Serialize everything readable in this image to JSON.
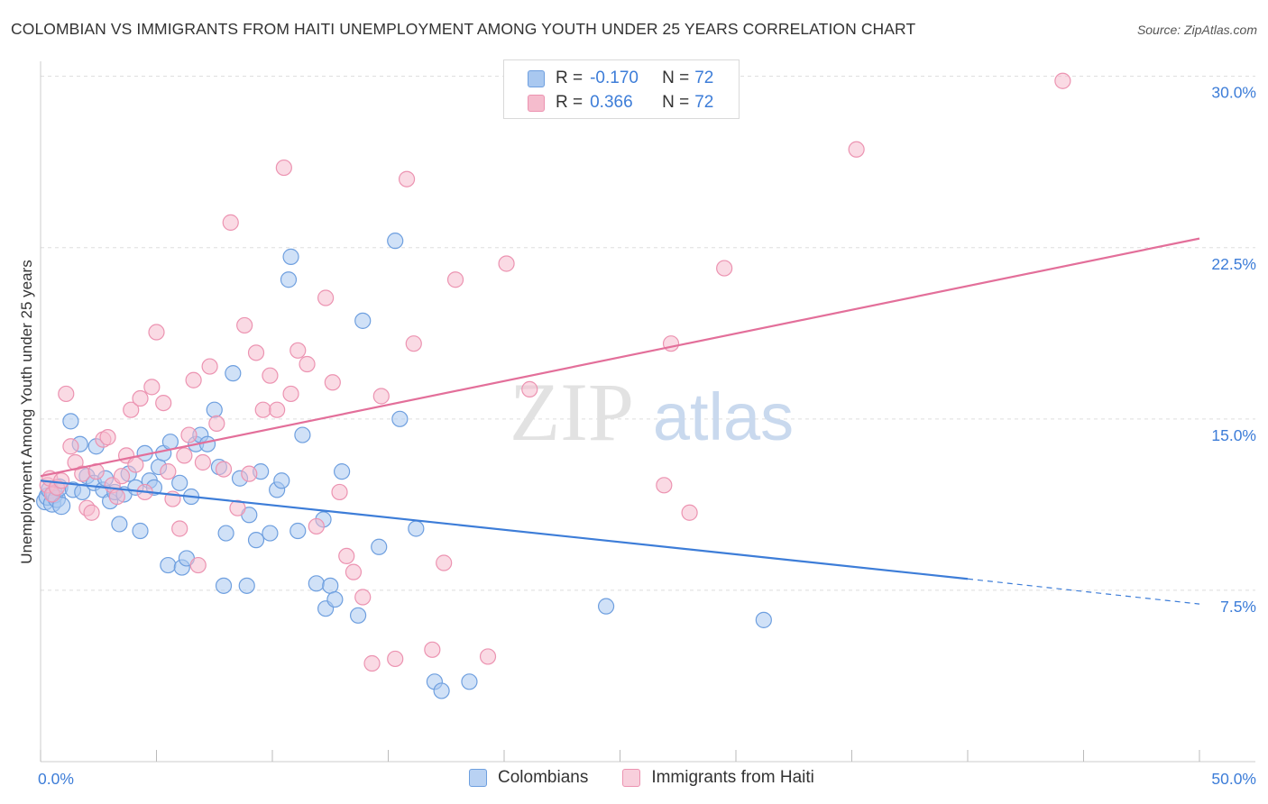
{
  "title": "COLOMBIAN VS IMMIGRANTS FROM HAITI UNEMPLOYMENT AMONG YOUTH UNDER 25 YEARS CORRELATION CHART",
  "source": "Source: ZipAtlas.com",
  "watermark": {
    "part1": "ZIP",
    "part2": "atlas"
  },
  "legend": {
    "row1": {
      "r_label": "R =",
      "r_value": "-0.170",
      "n_label": "N =",
      "n_value": "72"
    },
    "row2": {
      "r_label": "R =",
      "r_value": "0.366",
      "n_label": "N =",
      "n_value": "72"
    }
  },
  "colors": {
    "blue": "#3d7dd8",
    "blue_fill": "#a9c8f0",
    "blue_stroke": "#6e9fdf",
    "pink": "#e36f9a",
    "pink_fill": "#f5bccd",
    "pink_stroke": "#ec93b1",
    "grid": "#dddddd",
    "tick_label": "#3d7dd8"
  },
  "chart_data": {
    "type": "scatter",
    "title": "COLOMBIAN VS IMMIGRANTS FROM HAITI UNEMPLOYMENT AMONG YOUTH UNDER 25 YEARS CORRELATION CHART",
    "xlabel": "",
    "ylabel": "Unemployment Among Youth under 25 years",
    "xlim": [
      0,
      50
    ],
    "ylim": [
      0,
      30.5
    ],
    "x_tick_labels": [
      "0.0%",
      "50.0%"
    ],
    "y_ticks": [
      7.5,
      15,
      22.5,
      30
    ],
    "y_tick_labels": [
      "7.5%",
      "15.0%",
      "22.5%",
      "30.0%"
    ],
    "legend_position": "top-center",
    "series": [
      {
        "name": "Colombians",
        "color": "#3d7dd8",
        "r": -0.17,
        "n": 72,
        "trend": {
          "x0": 0,
          "y0": 12.3,
          "x1": 40,
          "y1": 8.0,
          "dashed_to_x": 50,
          "dashed_to_y": 6.9
        },
        "points": [
          [
            0.2,
            11.4
          ],
          [
            0.3,
            11.6
          ],
          [
            0.4,
            11.9
          ],
          [
            0.5,
            11.3
          ],
          [
            0.6,
            11.7
          ],
          [
            0.7,
            11.5
          ],
          [
            0.8,
            12.0
          ],
          [
            0.9,
            11.2
          ],
          [
            1.3,
            14.9
          ],
          [
            1.4,
            11.9
          ],
          [
            1.7,
            13.9
          ],
          [
            1.8,
            11.8
          ],
          [
            2.0,
            12.5
          ],
          [
            2.3,
            12.2
          ],
          [
            2.4,
            13.8
          ],
          [
            2.7,
            11.9
          ],
          [
            2.8,
            12.4
          ],
          [
            3.0,
            11.4
          ],
          [
            3.2,
            11.8
          ],
          [
            3.4,
            10.4
          ],
          [
            3.6,
            11.7
          ],
          [
            3.8,
            12.6
          ],
          [
            4.1,
            12.0
          ],
          [
            4.3,
            10.1
          ],
          [
            4.5,
            13.5
          ],
          [
            4.7,
            12.3
          ],
          [
            4.9,
            12.0
          ],
          [
            5.1,
            12.9
          ],
          [
            5.3,
            13.5
          ],
          [
            5.5,
            8.6
          ],
          [
            5.6,
            14.0
          ],
          [
            6.0,
            12.2
          ],
          [
            6.1,
            8.5
          ],
          [
            6.3,
            8.9
          ],
          [
            6.5,
            11.6
          ],
          [
            6.7,
            13.9
          ],
          [
            6.9,
            14.3
          ],
          [
            7.2,
            13.9
          ],
          [
            7.5,
            15.4
          ],
          [
            7.7,
            12.9
          ],
          [
            7.9,
            7.7
          ],
          [
            8.0,
            10.0
          ],
          [
            8.3,
            17.0
          ],
          [
            8.6,
            12.4
          ],
          [
            8.9,
            7.7
          ],
          [
            9.0,
            10.8
          ],
          [
            9.3,
            9.7
          ],
          [
            9.5,
            12.7
          ],
          [
            9.9,
            10.0
          ],
          [
            10.2,
            11.9
          ],
          [
            10.4,
            12.3
          ],
          [
            10.7,
            21.1
          ],
          [
            10.8,
            22.1
          ],
          [
            11.1,
            10.1
          ],
          [
            11.3,
            14.3
          ],
          [
            11.9,
            7.8
          ],
          [
            12.2,
            10.6
          ],
          [
            12.3,
            6.7
          ],
          [
            12.5,
            7.7
          ],
          [
            12.7,
            7.1
          ],
          [
            13.0,
            12.7
          ],
          [
            13.7,
            6.4
          ],
          [
            13.9,
            19.3
          ],
          [
            14.6,
            9.4
          ],
          [
            15.3,
            22.8
          ],
          [
            15.5,
            15.0
          ],
          [
            16.2,
            10.2
          ],
          [
            17.0,
            3.5
          ],
          [
            17.3,
            3.1
          ],
          [
            18.5,
            3.5
          ],
          [
            24.4,
            6.8
          ],
          [
            31.2,
            6.2
          ]
        ]
      },
      {
        "name": "Immigrants from Haiti",
        "color": "#e36f9a",
        "r": 0.366,
        "n": 72,
        "trend": {
          "x0": 0,
          "y0": 12.5,
          "x1": 50,
          "y1": 22.9
        },
        "points": [
          [
            0.3,
            12.1
          ],
          [
            0.4,
            12.4
          ],
          [
            0.5,
            11.7
          ],
          [
            0.7,
            12.0
          ],
          [
            0.9,
            12.3
          ],
          [
            1.1,
            16.1
          ],
          [
            1.3,
            13.8
          ],
          [
            1.5,
            13.1
          ],
          [
            1.8,
            12.6
          ],
          [
            2.0,
            11.1
          ],
          [
            2.2,
            10.9
          ],
          [
            2.4,
            12.7
          ],
          [
            2.7,
            14.1
          ],
          [
            2.9,
            14.2
          ],
          [
            3.1,
            12.1
          ],
          [
            3.3,
            11.6
          ],
          [
            3.5,
            12.5
          ],
          [
            3.7,
            13.4
          ],
          [
            3.9,
            15.4
          ],
          [
            4.1,
            13.0
          ],
          [
            4.3,
            15.9
          ],
          [
            4.5,
            11.8
          ],
          [
            4.8,
            16.4
          ],
          [
            5.0,
            18.8
          ],
          [
            5.3,
            15.7
          ],
          [
            5.5,
            12.7
          ],
          [
            5.7,
            11.5
          ],
          [
            6.0,
            10.2
          ],
          [
            6.2,
            13.4
          ],
          [
            6.4,
            14.3
          ],
          [
            6.6,
            16.7
          ],
          [
            6.8,
            8.6
          ],
          [
            7.0,
            13.1
          ],
          [
            7.3,
            17.3
          ],
          [
            7.6,
            14.8
          ],
          [
            7.9,
            12.8
          ],
          [
            8.2,
            23.6
          ],
          [
            8.5,
            11.1
          ],
          [
            8.8,
            19.1
          ],
          [
            9.0,
            12.6
          ],
          [
            9.3,
            17.9
          ],
          [
            9.6,
            15.4
          ],
          [
            9.9,
            16.9
          ],
          [
            10.2,
            15.4
          ],
          [
            10.5,
            26.0
          ],
          [
            10.8,
            16.1
          ],
          [
            11.1,
            18.0
          ],
          [
            11.5,
            17.4
          ],
          [
            11.9,
            10.3
          ],
          [
            12.3,
            20.3
          ],
          [
            12.6,
            16.6
          ],
          [
            12.9,
            11.8
          ],
          [
            13.2,
            9.0
          ],
          [
            13.5,
            8.3
          ],
          [
            13.9,
            7.2
          ],
          [
            14.3,
            4.3
          ],
          [
            14.7,
            16.0
          ],
          [
            15.3,
            4.5
          ],
          [
            15.8,
            25.5
          ],
          [
            16.1,
            18.3
          ],
          [
            16.9,
            4.9
          ],
          [
            17.4,
            8.7
          ],
          [
            19.3,
            4.6
          ],
          [
            20.1,
            21.8
          ],
          [
            21.1,
            16.3
          ],
          [
            26.9,
            12.1
          ],
          [
            27.2,
            18.3
          ],
          [
            28.0,
            10.9
          ],
          [
            29.5,
            21.6
          ],
          [
            35.2,
            26.8
          ],
          [
            44.1,
            29.8
          ],
          [
            17.9,
            21.1
          ]
        ]
      }
    ]
  },
  "bottom_legend": {
    "item1": "Colombians",
    "item2": "Immigrants from Haiti"
  }
}
